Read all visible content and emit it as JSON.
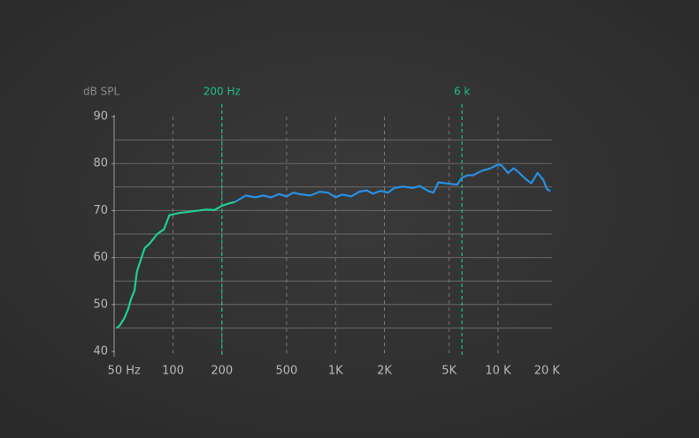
{
  "chart_data": {
    "type": "line",
    "y_label": "dB SPL",
    "xscale": "log",
    "xlim": [
      44,
      21500
    ],
    "ylim": [
      40,
      90
    ],
    "xticks": [
      {
        "value": 50,
        "label": "50 Hz"
      },
      100,
      200,
      500,
      {
        "value": 1000,
        "label": "1K"
      },
      {
        "value": 2000,
        "label": "2K"
      },
      {
        "value": 5000,
        "label": "5K"
      },
      {
        "value": 10000,
        "label": "10 K"
      },
      {
        "value": 20000,
        "label": "20 K"
      }
    ],
    "x_grid": [
      100,
      200,
      500,
      1000,
      2000,
      5000,
      10000
    ],
    "yticks": [
      40,
      50,
      60,
      70,
      80,
      90
    ],
    "y_grid": [
      45,
      50,
      55,
      60,
      65,
      70,
      75,
      80,
      85
    ],
    "markers": [
      {
        "x": 200,
        "label": "200 Hz"
      },
      {
        "x": 6000,
        "label": "6 k"
      }
    ],
    "marker_color": "#1fbf86",
    "series": [
      {
        "color": "#1fcf8f",
        "x": [
          45,
          47,
          50,
          53,
          55,
          58,
          60,
          64,
          67,
          72,
          80,
          88,
          95,
          110,
          130,
          160,
          180,
          200,
          220,
          240
        ],
        "values": [
          45,
          45.5,
          47,
          49,
          51,
          53,
          57,
          60,
          62,
          63,
          65,
          66,
          69,
          69.5,
          69.8,
          70.2,
          70.1,
          71,
          71.5,
          71.8
        ]
      },
      {
        "color": "#2a8fe0",
        "x": [
          240,
          260,
          280,
          320,
          360,
          400,
          450,
          500,
          550,
          600,
          700,
          800,
          900,
          1000,
          1100,
          1250,
          1400,
          1550,
          1700,
          1900,
          2100,
          2300,
          2600,
          3000,
          3300,
          3700,
          4000,
          4300,
          5000,
          5600,
          6000,
          6500,
          7000,
          8000,
          9000,
          10000,
          10500,
          11500,
          12500,
          13500,
          15000,
          16000,
          17500,
          19000,
          20000,
          21000
        ],
        "values": [
          71.8,
          72.5,
          73.2,
          72.8,
          73.2,
          72.8,
          73.5,
          73,
          73.8,
          73.5,
          73.2,
          74,
          73.8,
          72.8,
          73.4,
          73,
          74,
          74.3,
          73.6,
          74.2,
          73.8,
          74.8,
          75.1,
          74.8,
          75.2,
          74.2,
          73.8,
          76,
          75.7,
          75.5,
          77,
          77.5,
          77.5,
          78.5,
          79,
          79.8,
          79.6,
          78,
          79,
          78,
          76.5,
          75.8,
          78,
          76.5,
          74.5,
          74.2
        ]
      }
    ]
  }
}
